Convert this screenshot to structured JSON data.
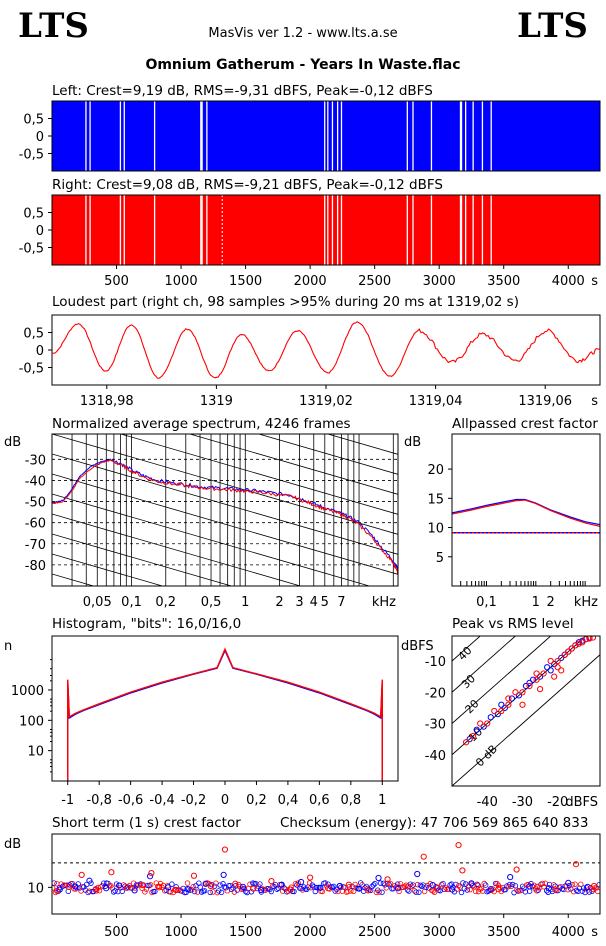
{
  "header": {
    "logo_left": "LTS",
    "logo_right": "LTS",
    "subtitle": "MasVis ver 1.2 - www.lts.a.se",
    "file_title": "Omnium Gatherum - Years In Waste.flac"
  },
  "colors": {
    "left": "#0000ff",
    "right": "#ff0000",
    "axis": "#000000",
    "background": "#ffffff"
  },
  "chart_data": [
    {
      "id": "left-waveform",
      "type": "area",
      "title": "Left: Crest=9,19 dB, RMS=-9,31 dBFS, Peak=-0,12 dBFS",
      "xlim": [
        0,
        4246
      ],
      "ylim": [
        -1,
        1
      ],
      "y_ticks": [
        "0.5",
        "0",
        "-0.5"
      ],
      "y_tick_labels": [
        "0,5",
        "0",
        "-0,5"
      ],
      "series": [
        {
          "name": "Left",
          "color": "#0000ff"
        }
      ],
      "gaps_seconds": [
        258,
        290,
        525,
        555,
        790,
        1148,
        1158,
        1195,
        2108,
        2132,
        2168,
        2208,
        2238,
        2748,
        2792,
        2935,
        3160,
        3168,
        3200,
        3258,
        3330,
        3398
      ]
    },
    {
      "id": "right-waveform",
      "type": "area",
      "title": "Right: Crest=9,08 dB, RMS=-9,21 dBFS, Peak=-0,12 dBFS",
      "xlim": [
        0,
        4246
      ],
      "ylim": [
        -1,
        1
      ],
      "y_tick_labels": [
        "0,5",
        "0",
        "-0,5"
      ],
      "x_ticks": [
        500,
        1000,
        1500,
        2000,
        2500,
        3000,
        3500,
        4000
      ],
      "x_unit": "s",
      "series": [
        {
          "name": "Right",
          "color": "#ff0000"
        }
      ],
      "peak_marker_seconds": 1319.02,
      "gaps_seconds": [
        258,
        290,
        525,
        555,
        790,
        1148,
        1158,
        1195,
        2108,
        2132,
        2168,
        2208,
        2238,
        2748,
        2792,
        2935,
        3160,
        3168,
        3200,
        3258,
        3330,
        3398
      ]
    },
    {
      "id": "loudest-part",
      "type": "line",
      "title": "Loudest part (right ch, 98 samples >95% during 20 ms at 1319,02 s)",
      "xlim": [
        1318.97,
        1319.07
      ],
      "ylim": [
        -1,
        1
      ],
      "x_ticks": [
        1318.98,
        1319,
        1319.02,
        1319.04,
        1319.06
      ],
      "x_tick_labels": [
        "1318,98",
        "1319",
        "1319,02",
        "1319,04",
        "1319,06"
      ],
      "x_unit": "s",
      "y_tick_labels": [
        "0,5",
        "0",
        "-0,5"
      ],
      "series": [
        {
          "name": "Right",
          "color": "#ff0000",
          "x": [
            1318.97,
            1318.9748,
            1318.9798,
            1318.9845,
            1318.9895,
            1318.9947,
            1318.9998,
            1319.0046,
            1319.0096,
            1319.0148,
            1319.0203,
            1319.0257,
            1319.0317,
            1319.037,
            1319.043,
            1319.0486,
            1319.0546,
            1319.0603,
            1319.066,
            1319.07
          ],
          "y": [
            -0.1,
            0.75,
            -0.6,
            0.72,
            -0.8,
            0.6,
            -0.8,
            0.45,
            -0.6,
            0.55,
            -0.65,
            0.8,
            -0.75,
            0.55,
            -0.35,
            0.45,
            -0.3,
            0.55,
            -0.3,
            0.0
          ]
        }
      ]
    },
    {
      "id": "avg-spectrum",
      "type": "line",
      "title": "Normalized average spectrum, 4246 frames",
      "ylabel": "dB",
      "xlabel": "kHz",
      "x_log": true,
      "xlim": [
        0.02,
        22
      ],
      "ylim": [
        -90,
        -18
      ],
      "y_ticks": [
        -30,
        -40,
        -50,
        -60,
        -70,
        -80
      ],
      "x_ticks": [
        0.05,
        0.1,
        0.2,
        0.5,
        1,
        2,
        3,
        4,
        5,
        7
      ],
      "x_tick_labels": [
        "0,05",
        "0,1",
        "0,2",
        "0,5",
        "1",
        "2",
        "3",
        "4",
        "5",
        "7"
      ],
      "series": [
        {
          "name": "Left",
          "color": "#0000ff",
          "x": [
            0.02,
            0.025,
            0.03,
            0.035,
            0.045,
            0.055,
            0.065,
            0.08,
            0.1,
            0.13,
            0.17,
            0.22,
            0.3,
            0.4,
            0.55,
            0.75,
            1,
            1.3,
            1.8,
            2.5,
            3.2,
            4,
            5,
            6.5,
            8,
            10,
            13,
            16,
            20,
            22
          ],
          "y": [
            -50.5,
            -49.5,
            -44,
            -38,
            -33,
            -31,
            -30,
            -32,
            -35,
            -38,
            -40,
            -41,
            -42,
            -43,
            -43.5,
            -44,
            -44.5,
            -45,
            -46,
            -47,
            -49,
            -51,
            -53,
            -55,
            -57,
            -60,
            -66,
            -72,
            -78,
            -82
          ]
        },
        {
          "name": "Right",
          "color": "#ff0000",
          "x": [
            0.02,
            0.025,
            0.03,
            0.035,
            0.045,
            0.055,
            0.065,
            0.08,
            0.1,
            0.13,
            0.17,
            0.22,
            0.3,
            0.4,
            0.55,
            0.75,
            1,
            1.3,
            1.8,
            2.5,
            3.2,
            4,
            5,
            6.5,
            8,
            10,
            13,
            16,
            20,
            22
          ],
          "y": [
            -51,
            -50,
            -45,
            -39,
            -34,
            -31.5,
            -30.5,
            -32.5,
            -35.5,
            -38.5,
            -40.5,
            -41.5,
            -42.5,
            -43.5,
            -44,
            -44.5,
            -45,
            -45.5,
            -46.5,
            -47.5,
            -49.5,
            -51.5,
            -53.5,
            -55.5,
            -57.5,
            -61,
            -67,
            -73,
            -79,
            -84
          ]
        }
      ]
    },
    {
      "id": "allpassed-crest",
      "type": "line",
      "title": "Allpassed crest factor",
      "ylabel": "dB",
      "xlabel": "kHz",
      "x_log": true,
      "xlim": [
        0.02,
        20
      ],
      "ylim": [
        0,
        26
      ],
      "y_ticks": [
        5,
        10,
        15,
        20
      ],
      "x_ticks": [
        0.1,
        1,
        2
      ],
      "x_tick_labels": [
        "0,1",
        "1",
        "2"
      ],
      "reference_line_db": 9.1,
      "series": [
        {
          "name": "Left",
          "color": "#0000ff",
          "x": [
            0.02,
            0.05,
            0.1,
            0.2,
            0.4,
            0.6,
            1,
            2,
            5,
            10,
            20
          ],
          "y": [
            12.5,
            13.2,
            13.8,
            14.3,
            14.8,
            14.8,
            14.2,
            13.0,
            11.8,
            11.0,
            10.5
          ]
        },
        {
          "name": "Right",
          "color": "#ff0000",
          "x": [
            0.02,
            0.05,
            0.1,
            0.2,
            0.4,
            0.6,
            1,
            2,
            5,
            10,
            20
          ],
          "y": [
            12.3,
            13.0,
            13.6,
            14.1,
            14.6,
            14.7,
            14.1,
            12.9,
            11.6,
            10.8,
            10.2
          ]
        }
      ]
    },
    {
      "id": "histogram",
      "type": "line",
      "title": "Histogram, \"bits\": 16,0/16,0",
      "ylabel": "n",
      "y_log": true,
      "xlim": [
        -1.1,
        1.1
      ],
      "ylim": [
        1,
        60000
      ],
      "y_ticks": [
        10,
        100,
        1000
      ],
      "y_tick_labels": [
        "10",
        "100",
        "1000"
      ],
      "x_ticks": [
        -1,
        -0.8,
        -0.6,
        -0.4,
        -0.2,
        0,
        0.2,
        0.4,
        0.6,
        0.8,
        1
      ],
      "x_tick_labels": [
        "-1",
        "-0,8",
        "-0,6",
        "-0,4",
        "-0,2",
        "0",
        "0,2",
        "0,4",
        "0,6",
        "0,8",
        "1"
      ],
      "series": [
        {
          "name": "Left",
          "color": "#0000ff",
          "x": [
            -1,
            -0.99,
            -0.95,
            -0.9,
            -0.8,
            -0.6,
            -0.4,
            -0.2,
            -0.05,
            0,
            0.05,
            0.2,
            0.4,
            0.6,
            0.8,
            0.9,
            0.95,
            0.99,
            1
          ],
          "y": [
            2000,
            120,
            160,
            210,
            330,
            800,
            1700,
            3300,
            5200,
            20000,
            5200,
            3300,
            1700,
            800,
            330,
            210,
            160,
            120,
            2000
          ]
        },
        {
          "name": "Right",
          "color": "#ff0000",
          "x": [
            -1,
            -0.99,
            -0.95,
            -0.9,
            -0.8,
            -0.6,
            -0.4,
            -0.2,
            -0.05,
            0,
            0.05,
            0.2,
            0.4,
            0.6,
            0.8,
            0.9,
            0.95,
            0.99,
            1
          ],
          "y": [
            2200,
            130,
            170,
            220,
            350,
            850,
            1800,
            3400,
            5400,
            22000,
            5400,
            3400,
            1800,
            850,
            350,
            220,
            170,
            130,
            2200
          ]
        }
      ]
    },
    {
      "id": "peak-vs-rms",
      "type": "scatter",
      "title": "Peak vs RMS level",
      "ylabel": "dBFS",
      "xlabel": "dBFS",
      "xlim": [
        -50,
        -8
      ],
      "ylim": [
        -50,
        -2
      ],
      "x_ticks": [
        -40,
        -30,
        -20
      ],
      "y_ticks": [
        -10,
        -20,
        -30,
        -40
      ],
      "diagonal_labels": [
        "40",
        "30",
        "20",
        "10",
        "0 dB"
      ],
      "series": [
        {
          "name": "Left",
          "color": "#0000ff",
          "x": [
            -45,
            -43,
            -41,
            -39,
            -37,
            -35,
            -33,
            -31,
            -29,
            -27,
            -25,
            -23,
            -21,
            -19,
            -17,
            -15,
            -14,
            -13,
            -12,
            -11,
            -36,
            -28,
            -22,
            -18,
            -16
          ],
          "y": [
            -35,
            -32,
            -31,
            -28,
            -27,
            -25,
            -22,
            -21,
            -18,
            -16,
            -15,
            -12,
            -11,
            -9,
            -7,
            -5,
            -4,
            -3.5,
            -3,
            -2.5,
            -24,
            -17,
            -13,
            -8,
            -6
          ]
        },
        {
          "name": "Right",
          "color": "#ff0000",
          "x": [
            -46,
            -44,
            -42,
            -40,
            -38,
            -36,
            -34,
            -32,
            -30,
            -28,
            -26,
            -24,
            -22,
            -20,
            -18,
            -16,
            -15,
            -14,
            -13,
            -12,
            -11,
            -10,
            -34,
            -26,
            -20,
            -17,
            -25,
            -30,
            -21,
            -19
          ],
          "y": [
            -36,
            -34,
            -30,
            -30,
            -26,
            -26,
            -24,
            -20,
            -20,
            -18,
            -14,
            -14,
            -10,
            -10,
            -8,
            -6,
            -5,
            -4.5,
            -4,
            -3,
            -2.8,
            -2.5,
            -22,
            -16,
            -12,
            -7,
            -19,
            -24,
            -15,
            -13
          ]
        }
      ]
    },
    {
      "id": "short-term-crest",
      "type": "scatter",
      "title": "Short term (1 s) crest factor",
      "ylabel": "dB",
      "xlim": [
        0,
        4246
      ],
      "ylim": [
        4,
        22
      ],
      "y_ticks": [
        10
      ],
      "threshold_db": 15.5,
      "x_ticks": [
        500,
        1000,
        1500,
        2000,
        2500,
        3000,
        3500,
        4000
      ],
      "x_unit": "s",
      "series": [
        {
          "name": "Left",
          "color": "#0000ff",
          "x": [
            60,
            180,
            290,
            420,
            520,
            640,
            760,
            900,
            1050,
            1190,
            1330,
            1480,
            1620,
            1780,
            1930,
            2080,
            2230,
            2380,
            2530,
            2680,
            2830,
            2950,
            3100,
            3250,
            3400,
            3550,
            3700,
            3850,
            4000,
            4150
          ],
          "y": [
            9.5,
            10.2,
            11.5,
            9.8,
            10.4,
            9.3,
            12.5,
            10.0,
            9.6,
            10.8,
            12.8,
            10.1,
            9.4,
            10.6,
            11.2,
            9.9,
            10.3,
            9.7,
            12.1,
            9.8,
            13.0,
            10.5,
            9.5,
            10.9,
            9.6,
            12.3,
            10.2,
            9.8,
            11.0,
            10.1
          ]
        },
        {
          "name": "Right",
          "color": "#ff0000",
          "x": [
            40,
            130,
            230,
            340,
            460,
            580,
            700,
            770,
            830,
            960,
            1100,
            1230,
            1340,
            1420,
            1560,
            1700,
            1850,
            2000,
            2140,
            2300,
            2450,
            2600,
            2760,
            2880,
            2990,
            3150,
            3180,
            3300,
            3460,
            3600,
            3760,
            3900,
            4060,
            4200
          ],
          "y": [
            9.2,
            10.1,
            12.8,
            9.6,
            13.4,
            9.9,
            10.5,
            13.2,
            10.0,
            9.4,
            12.6,
            10.3,
            18.5,
            10.8,
            9.7,
            11.4,
            9.5,
            12.2,
            9.8,
            10.6,
            9.3,
            11.8,
            10.2,
            16.9,
            9.9,
            19.5,
            13.8,
            10.4,
            9.6,
            14.0,
            10.1,
            9.5,
            15.2,
            10.3
          ]
        }
      ]
    }
  ],
  "checksum": {
    "label": "Checksum (energy):",
    "value": "47 706 569 865 640 833"
  }
}
